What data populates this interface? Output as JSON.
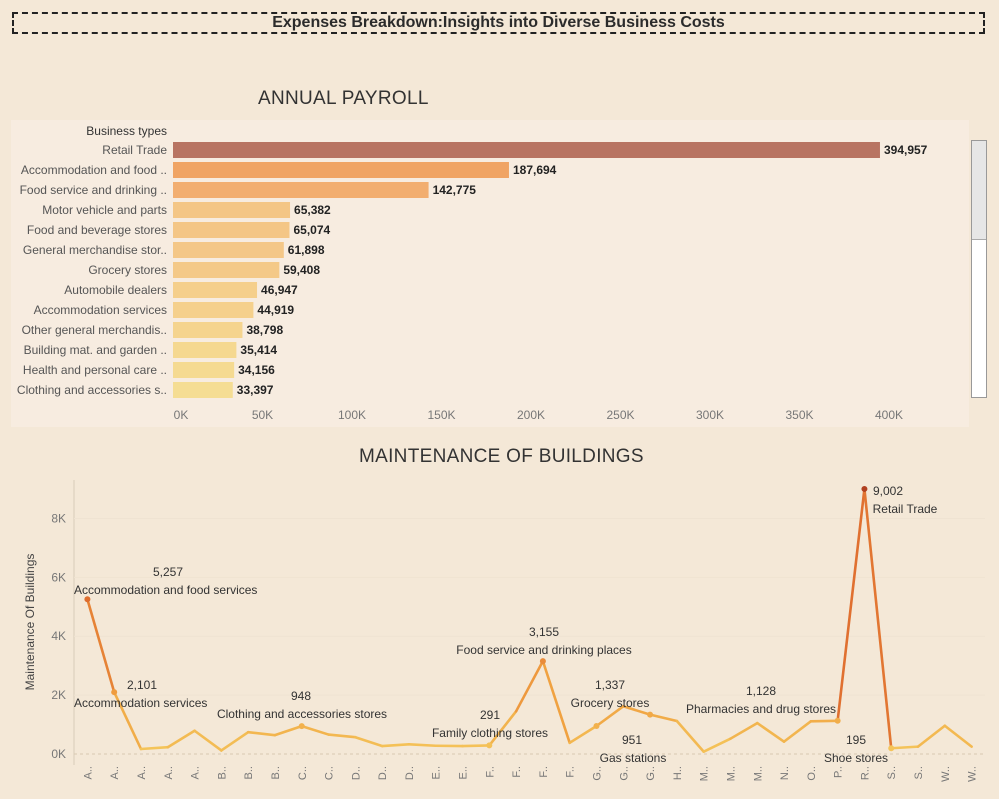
{
  "dashboard_title": "Expenses Breakdown:Insights into Diverse Business Costs",
  "chart_data": [
    {
      "type": "bar",
      "title": "ANNUAL PAYROLL",
      "category_header": "Business types",
      "categories": [
        "Retail Trade",
        "Accommodation and food ..",
        "Food service and drinking ..",
        "Motor vehicle and parts",
        "Food and beverage stores",
        "General merchandise stor..",
        "Grocery stores",
        "Automobile dealers",
        "Accommodation services",
        "Other general merchandis..",
        "Building mat. and garden ..",
        "Health and personal care ..",
        "Clothing and accessories s.."
      ],
      "values": [
        394957,
        187694,
        142775,
        65382,
        65074,
        61898,
        59408,
        46947,
        44919,
        38798,
        35414,
        34156,
        33397
      ],
      "value_labels": [
        "394,957",
        "187,694",
        "142,775",
        "65,382",
        "65,074",
        "61,898",
        "59,408",
        "46,947",
        "44,919",
        "38,798",
        "35,414",
        "34,156",
        "33,397"
      ],
      "xlim": [
        0,
        400000
      ],
      "x_ticks": [
        "0K",
        "50K",
        "100K",
        "150K",
        "200K",
        "250K",
        "300K",
        "350K",
        "400K"
      ],
      "orientation": "horizontal",
      "color_scale": [
        "#f5dd93",
        "#f4c083",
        "#f0a060",
        "#b87462"
      ]
    },
    {
      "type": "line",
      "title": "MAINTENANCE OF BUILDINGS",
      "ylabel": "Maintenance Of Buildings",
      "ylim": [
        0,
        9000
      ],
      "y_ticks": [
        0,
        2000,
        4000,
        6000,
        8000
      ],
      "y_tick_labels": [
        "0K",
        "2K",
        "4K",
        "6K",
        "8K"
      ],
      "x_labels": [
        "A..",
        "A..",
        "A..",
        "A..",
        "A..",
        "B..",
        "B..",
        "B..",
        "C..",
        "C..",
        "D..",
        "D..",
        "D..",
        "E..",
        "E..",
        "F..",
        "F..",
        "F..",
        "F..",
        "G..",
        "G..",
        "G..",
        "H..",
        "M..",
        "M..",
        "M..",
        "N..",
        "O..",
        "P..",
        "R..",
        "S..",
        "S..",
        "W..",
        "W.."
      ],
      "values": [
        5257,
        2101,
        170,
        230,
        790,
        120,
        740,
        640,
        948,
        660,
        570,
        270,
        330,
        280,
        270,
        291,
        1450,
        3155,
        380,
        951,
        1620,
        1337,
        1120,
        80,
        520,
        1050,
        420,
        1110,
        1128,
        9002,
        195,
        250,
        960,
        250
      ],
      "annotations": [
        {
          "index": 0,
          "value": "5,257",
          "label": "Accommodation and food services"
        },
        {
          "index": 1,
          "value": "2,101",
          "label": "Accommodation services"
        },
        {
          "index": 8,
          "value": "948",
          "label": "Clothing and accessories stores"
        },
        {
          "index": 15,
          "value": "291",
          "label": "Family clothing stores"
        },
        {
          "index": 17,
          "value": "3,155",
          "label": "Food service and drinking places"
        },
        {
          "index": 19,
          "value": "951",
          "label": "Gas stations"
        },
        {
          "index": 21,
          "value": "1,337",
          "label": "Grocery stores"
        },
        {
          "index": 28,
          "value": "1,128",
          "label": "Pharmacies and drug stores"
        },
        {
          "index": 29,
          "value": "9,002",
          "label": "Retail Trade"
        },
        {
          "index": 30,
          "value": "195",
          "label": "Shoe stores"
        }
      ],
      "color_scale": [
        "#f5cd60",
        "#f0a040",
        "#e07030",
        "#b04020"
      ]
    }
  ]
}
